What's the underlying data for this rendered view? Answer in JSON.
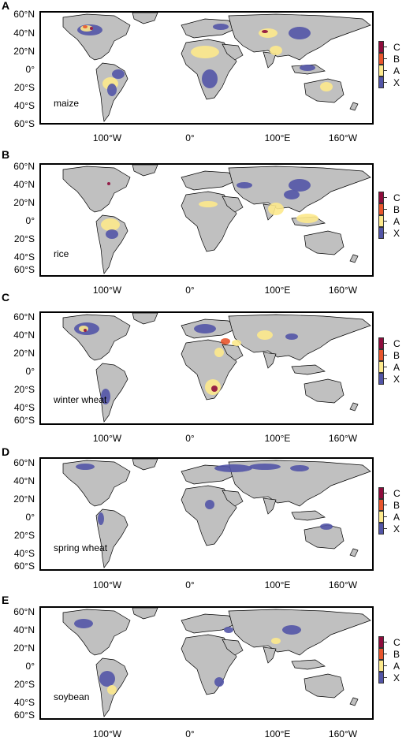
{
  "map": {
    "lat_labels": [
      "60°N",
      "40°N",
      "20°N",
      "0°",
      "20°S",
      "40°S",
      "60°S"
    ],
    "lon_labels": [
      "100°W",
      "0°",
      "100°E",
      "160°W"
    ],
    "legend": {
      "categories": [
        "C",
        "B",
        "A",
        "X"
      ],
      "colors": [
        "#8e0c3c",
        "#e8552c",
        "#fde98c",
        "#5355a7"
      ]
    },
    "land_color": "#c0c0c0",
    "border_color": "#000000"
  },
  "panels": [
    {
      "letter": "A",
      "crop": "maize"
    },
    {
      "letter": "B",
      "crop": "rice"
    },
    {
      "letter": "C",
      "crop": "winter wheat"
    },
    {
      "letter": "D",
      "crop": "spring wheat"
    },
    {
      "letter": "E",
      "crop": "soybean"
    }
  ]
}
